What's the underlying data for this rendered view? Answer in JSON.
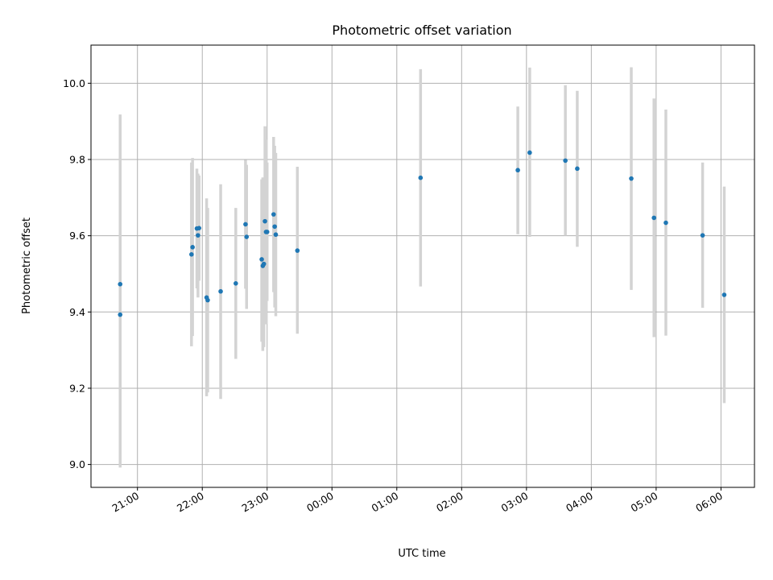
{
  "chart_data": {
    "type": "scatter",
    "title": "Photometric offset variation",
    "xlabel": "UTC time",
    "ylabel": "Photometric offset",
    "x_is_time": true,
    "xlim": [
      "2024-01-01T20:17",
      "2024-01-02T06:31"
    ],
    "ylim": [
      8.94,
      10.1
    ],
    "xticks": [
      {
        "t": "2024-01-01T21:00",
        "label": "21:00"
      },
      {
        "t": "2024-01-01T22:00",
        "label": "22:00"
      },
      {
        "t": "2024-01-01T23:00",
        "label": "23:00"
      },
      {
        "t": "2024-01-02T00:00",
        "label": "00:00"
      },
      {
        "t": "2024-01-02T01:00",
        "label": "01:00"
      },
      {
        "t": "2024-01-02T02:00",
        "label": "02:00"
      },
      {
        "t": "2024-01-02T03:00",
        "label": "03:00"
      },
      {
        "t": "2024-01-02T04:00",
        "label": "04:00"
      },
      {
        "t": "2024-01-02T05:00",
        "label": "05:00"
      },
      {
        "t": "2024-01-02T06:00",
        "label": "06:00"
      }
    ],
    "yticks": [
      {
        "v": 9.0,
        "label": "9.0"
      },
      {
        "v": 9.2,
        "label": "9.2"
      },
      {
        "v": 9.4,
        "label": "9.4"
      },
      {
        "v": 9.6,
        "label": "9.6"
      },
      {
        "v": 9.8,
        "label": "9.8"
      },
      {
        "v": 10.0,
        "label": "10.0"
      }
    ],
    "grid": true,
    "point_color": "#1f77b4",
    "errorbar_color": "#d3d3d3",
    "points": [
      {
        "t": "2024-01-01T20:44",
        "y": 9.473,
        "ylo": 9.03,
        "yhi": 9.918
      },
      {
        "t": "2024-01-01T20:44",
        "y": 9.393,
        "ylo": 8.992,
        "yhi": 9.795
      },
      {
        "t": "2024-01-01T21:50",
        "y": 9.551,
        "ylo": 9.31,
        "yhi": 9.792
      },
      {
        "t": "2024-01-01T21:51",
        "y": 9.57,
        "ylo": 9.337,
        "yhi": 9.804
      },
      {
        "t": "2024-01-01T21:55",
        "y": 9.619,
        "ylo": 9.462,
        "yhi": 9.776
      },
      {
        "t": "2024-01-01T21:56",
        "y": 9.601,
        "ylo": 9.438,
        "yhi": 9.763
      },
      {
        "t": "2024-01-01T21:57",
        "y": 9.62,
        "ylo": 9.482,
        "yhi": 9.758
      },
      {
        "t": "2024-01-01T22:04",
        "y": 9.438,
        "ylo": 9.179,
        "yhi": 9.698
      },
      {
        "t": "2024-01-01T22:05",
        "y": 9.431,
        "ylo": 9.189,
        "yhi": 9.673
      },
      {
        "t": "2024-01-01T22:17",
        "y": 9.454,
        "ylo": 9.172,
        "yhi": 9.735
      },
      {
        "t": "2024-01-01T22:31",
        "y": 9.475,
        "ylo": 9.277,
        "yhi": 9.673
      },
      {
        "t": "2024-01-01T22:40",
        "y": 9.63,
        "ylo": 9.461,
        "yhi": 9.799
      },
      {
        "t": "2024-01-01T22:41",
        "y": 9.597,
        "ylo": 9.408,
        "yhi": 9.786
      },
      {
        "t": "2024-01-01T22:55",
        "y": 9.538,
        "ylo": 9.322,
        "yhi": 9.748
      },
      {
        "t": "2024-01-01T22:56",
        "y": 9.521,
        "ylo": 9.298,
        "yhi": 9.753
      },
      {
        "t": "2024-01-01T22:57",
        "y": 9.526,
        "ylo": 9.308,
        "yhi": 9.739
      },
      {
        "t": "2024-01-01T22:58",
        "y": 9.638,
        "ylo": 9.389,
        "yhi": 9.887
      },
      {
        "t": "2024-01-01T22:59",
        "y": 9.61,
        "ylo": 9.368,
        "yhi": 9.852
      },
      {
        "t": "2024-01-01T23:00",
        "y": 9.61,
        "ylo": 9.429,
        "yhi": 9.792
      },
      {
        "t": "2024-01-01T23:06",
        "y": 9.656,
        "ylo": 9.452,
        "yhi": 9.859
      },
      {
        "t": "2024-01-01T23:07",
        "y": 9.624,
        "ylo": 9.412,
        "yhi": 9.836
      },
      {
        "t": "2024-01-01T23:08",
        "y": 9.603,
        "ylo": 9.389,
        "yhi": 9.817
      },
      {
        "t": "2024-01-01T23:28",
        "y": 9.561,
        "ylo": 9.343,
        "yhi": 9.781
      },
      {
        "t": "2024-01-02T01:22",
        "y": 9.752,
        "ylo": 9.467,
        "yhi": 10.037
      },
      {
        "t": "2024-01-02T02:52",
        "y": 9.772,
        "ylo": 9.604,
        "yhi": 9.939
      },
      {
        "t": "2024-01-02T03:03",
        "y": 9.818,
        "ylo": 9.597,
        "yhi": 10.041
      },
      {
        "t": "2024-01-02T03:36",
        "y": 9.797,
        "ylo": 9.6,
        "yhi": 9.995
      },
      {
        "t": "2024-01-02T03:47",
        "y": 9.776,
        "ylo": 9.571,
        "yhi": 9.98
      },
      {
        "t": "2024-01-02T04:37",
        "y": 9.75,
        "ylo": 9.458,
        "yhi": 10.042
      },
      {
        "t": "2024-01-02T04:58",
        "y": 9.647,
        "ylo": 9.334,
        "yhi": 9.96
      },
      {
        "t": "2024-01-02T05:09",
        "y": 9.634,
        "ylo": 9.338,
        "yhi": 9.931
      },
      {
        "t": "2024-01-02T05:43",
        "y": 9.601,
        "ylo": 9.411,
        "yhi": 9.792
      },
      {
        "t": "2024-01-02T06:03",
        "y": 9.445,
        "ylo": 9.161,
        "yhi": 9.729
      }
    ]
  }
}
